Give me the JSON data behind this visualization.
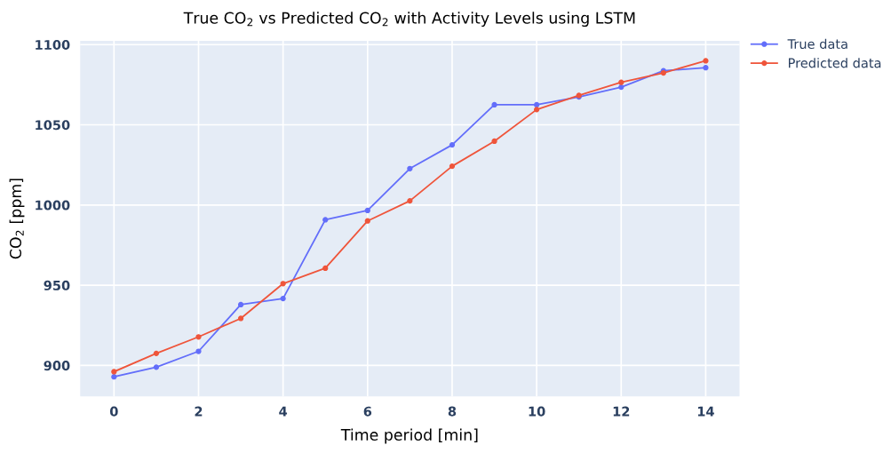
{
  "chart_data": {
    "type": "line",
    "title": "True CO$_{2}$ vs Predicted CO$_{2}$ with Activity Levels using LSTM",
    "xlabel": "Time period [min]",
    "ylabel": "CO$_{2}$ [ppm]",
    "x": [
      0,
      1,
      2,
      3,
      4,
      5,
      6,
      7,
      8,
      9,
      10,
      11,
      12,
      13,
      14
    ],
    "series": [
      {
        "name": "True data",
        "color": "#636efa",
        "values": [
          892.9,
          898.9,
          908.8,
          937.9,
          941.7,
          990.8,
          996.6,
          1022.7,
          1037.5,
          1062.5,
          1062.5,
          1067.4,
          1073.5,
          1083.7,
          1085.6
        ]
      },
      {
        "name": "Predicted data",
        "color": "#ef553b",
        "values": [
          896.1,
          907.5,
          917.8,
          929.3,
          951.0,
          960.6,
          990.1,
          1002.6,
          1024.2,
          1039.8,
          1059.5,
          1068.3,
          1076.5,
          1082.4,
          1089.9
        ]
      }
    ],
    "xlim": [
      -0.8,
      14.8
    ],
    "xticks": [
      0,
      2,
      4,
      6,
      8,
      10,
      12,
      14
    ],
    "ylim": [
      880.7,
      1102.4
    ],
    "yticks": [
      900,
      950,
      1000,
      1050,
      1100
    ],
    "grid": true,
    "legend": "top right",
    "marker": "circle",
    "line_style": "solid"
  }
}
